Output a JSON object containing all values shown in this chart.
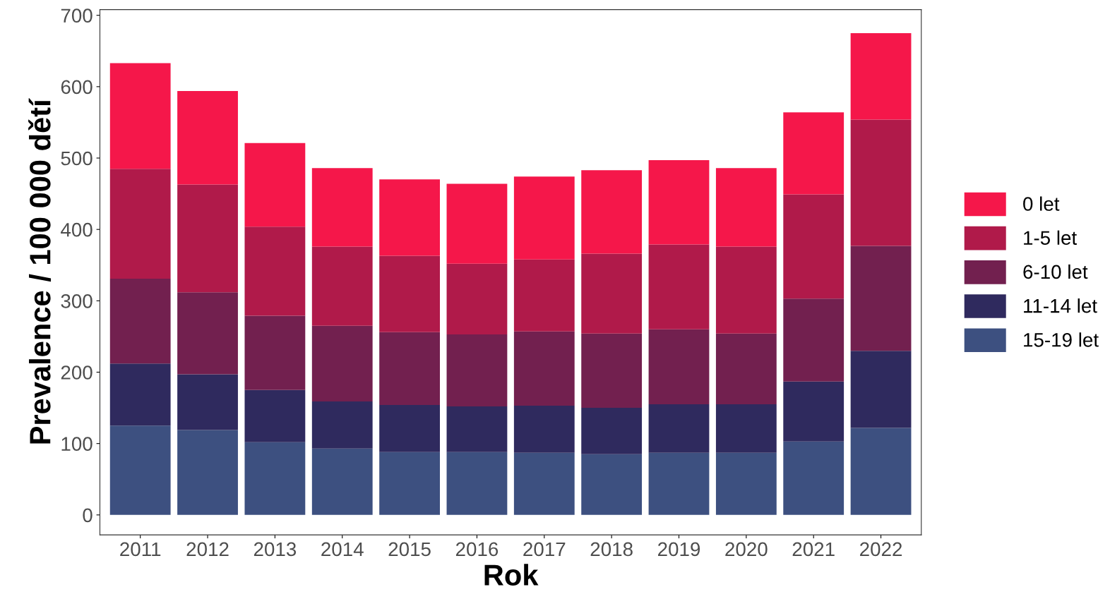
{
  "chart_data": {
    "type": "bar",
    "stacked": true,
    "xlabel": "Rok",
    "ylabel": "Prevalence / 100 000 dětí",
    "categories": [
      "2011",
      "2012",
      "2013",
      "2014",
      "2015",
      "2016",
      "2017",
      "2018",
      "2019",
      "2020",
      "2021",
      "2022"
    ],
    "series": [
      {
        "name": "15-19 let",
        "color": "#3d5080",
        "values": [
          125,
          119,
          102,
          93,
          88,
          88,
          87,
          85,
          87,
          87,
          103,
          122
        ]
      },
      {
        "name": "11-14 let",
        "color": "#2f2a5e",
        "values": [
          87,
          78,
          73,
          66,
          66,
          64,
          66,
          65,
          68,
          68,
          84,
          108
        ]
      },
      {
        "name": "6-10 let",
        "color": "#72204f",
        "values": [
          119,
          115,
          104,
          106,
          102,
          101,
          104,
          104,
          105,
          99,
          116,
          147
        ]
      },
      {
        "name": "1-5 let",
        "color": "#b01a4a",
        "values": [
          154,
          151,
          125,
          111,
          107,
          99,
          101,
          112,
          119,
          122,
          146,
          177
        ]
      },
      {
        "name": "0 let",
        "color": "#f5174a",
        "values": [
          148,
          131,
          117,
          110,
          107,
          112,
          116,
          117,
          118,
          110,
          115,
          121
        ]
      }
    ],
    "ylim": [
      -28,
      708
    ],
    "yticks": [
      0,
      100,
      200,
      300,
      400,
      500,
      600,
      700
    ],
    "legend": "right",
    "grid": false
  }
}
